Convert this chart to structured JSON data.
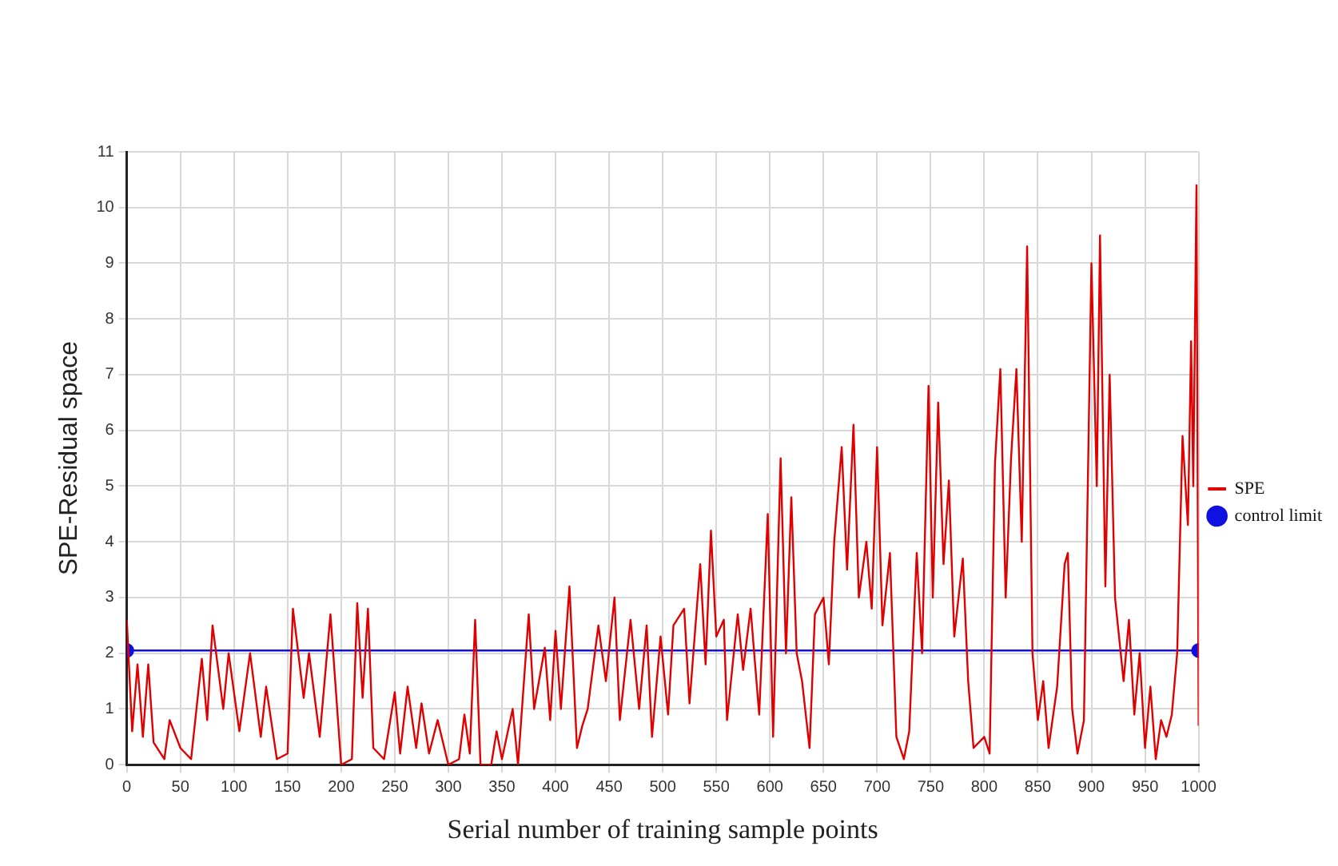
{
  "chart_data": {
    "type": "line",
    "xlabel": "Serial number of training sample points",
    "ylabel": "SPE-Residual space",
    "xlim": [
      0,
      1000
    ],
    "xticks": [
      0,
      50,
      100,
      150,
      200,
      250,
      300,
      350,
      400,
      450,
      500,
      550,
      600,
      650,
      700,
      750,
      800,
      850,
      900,
      950,
      1000
    ],
    "ylim": [
      0,
      11
    ],
    "yticks": [
      0,
      1,
      2,
      3,
      4,
      5,
      6,
      7,
      8,
      9,
      10,
      11
    ],
    "grid": true,
    "legend": "right",
    "series": [
      {
        "name": "SPE",
        "color": "#e00000",
        "marker": "none",
        "x": [
          0,
          5,
          10,
          15,
          20,
          25,
          35,
          40,
          50,
          60,
          70,
          75,
          80,
          90,
          95,
          105,
          115,
          125,
          130,
          140,
          150,
          155,
          165,
          170,
          180,
          190,
          200,
          210,
          215,
          220,
          225,
          230,
          240,
          250,
          255,
          262,
          270,
          275,
          282,
          290,
          300,
          310,
          315,
          320,
          325,
          330,
          340,
          345,
          350,
          360,
          365,
          375,
          380,
          390,
          395,
          400,
          405,
          413,
          420,
          425,
          430,
          440,
          447,
          455,
          460,
          470,
          478,
          485,
          490,
          498,
          505,
          510,
          520,
          525,
          535,
          540,
          545,
          550,
          557,
          560,
          570,
          575,
          582,
          590,
          598,
          603,
          610,
          615,
          620,
          625,
          630,
          637,
          642,
          650,
          655,
          660,
          667,
          672,
          678,
          683,
          690,
          695,
          700,
          705,
          712,
          718,
          725,
          730,
          737,
          742,
          748,
          752,
          757,
          762,
          767,
          772,
          780,
          785,
          790,
          800,
          805,
          810,
          815,
          820,
          825,
          830,
          835,
          840,
          845,
          850,
          855,
          860,
          868,
          875,
          878,
          882,
          887,
          893,
          900,
          905,
          908,
          913,
          917,
          922,
          930,
          935,
          940,
          945,
          950,
          955,
          960,
          965,
          970,
          975,
          980,
          985,
          990,
          993,
          995,
          998,
          1000
        ],
        "values": [
          2.6,
          0.6,
          1.8,
          0.5,
          1.8,
          0.4,
          0.1,
          0.8,
          0.3,
          0.1,
          1.9,
          0.8,
          2.5,
          1.0,
          2.0,
          0.6,
          2.0,
          0.5,
          1.4,
          0.1,
          0.2,
          2.8,
          1.2,
          2.0,
          0.5,
          2.7,
          0.0,
          0.1,
          2.9,
          1.2,
          2.8,
          0.3,
          0.1,
          1.3,
          0.2,
          1.4,
          0.3,
          1.1,
          0.2,
          0.8,
          0.0,
          0.1,
          0.9,
          0.2,
          2.6,
          0.0,
          0.0,
          0.6,
          0.1,
          1.0,
          0.0,
          2.7,
          1.0,
          2.1,
          0.8,
          2.4,
          1.0,
          3.2,
          0.3,
          0.7,
          1.0,
          2.5,
          1.5,
          3.0,
          0.8,
          2.6,
          1.0,
          2.5,
          0.5,
          2.3,
          0.9,
          2.5,
          2.8,
          1.1,
          3.6,
          1.8,
          4.2,
          2.3,
          2.6,
          0.8,
          2.7,
          1.7,
          2.8,
          0.9,
          4.5,
          0.5,
          5.5,
          2.0,
          4.8,
          2.0,
          1.5,
          0.3,
          2.7,
          3.0,
          1.8,
          4.0,
          5.7,
          3.5,
          6.1,
          3.0,
          4.0,
          2.8,
          5.7,
          2.5,
          3.8,
          0.5,
          0.1,
          0.6,
          3.8,
          2.0,
          6.8,
          3.0,
          6.5,
          3.6,
          5.1,
          2.3,
          3.7,
          1.5,
          0.3,
          0.5,
          0.2,
          5.4,
          7.1,
          3.0,
          5.5,
          7.1,
          4.0,
          9.3,
          2.0,
          0.8,
          1.5,
          0.3,
          1.4,
          3.6,
          3.8,
          1.0,
          0.2,
          0.8,
          9.0,
          5.0,
          9.5,
          3.2,
          7.0,
          3.0,
          1.5,
          2.6,
          0.9,
          2.0,
          0.3,
          1.4,
          0.1,
          0.8,
          0.5,
          0.9,
          2.0,
          5.9,
          4.3,
          7.6,
          5.0,
          10.4,
          0.7
        ]
      },
      {
        "name": "control limit",
        "color": "#1010e0",
        "marker": "circle",
        "x": [
          0,
          1000
        ],
        "values": [
          2.05,
          2.05
        ]
      }
    ]
  }
}
